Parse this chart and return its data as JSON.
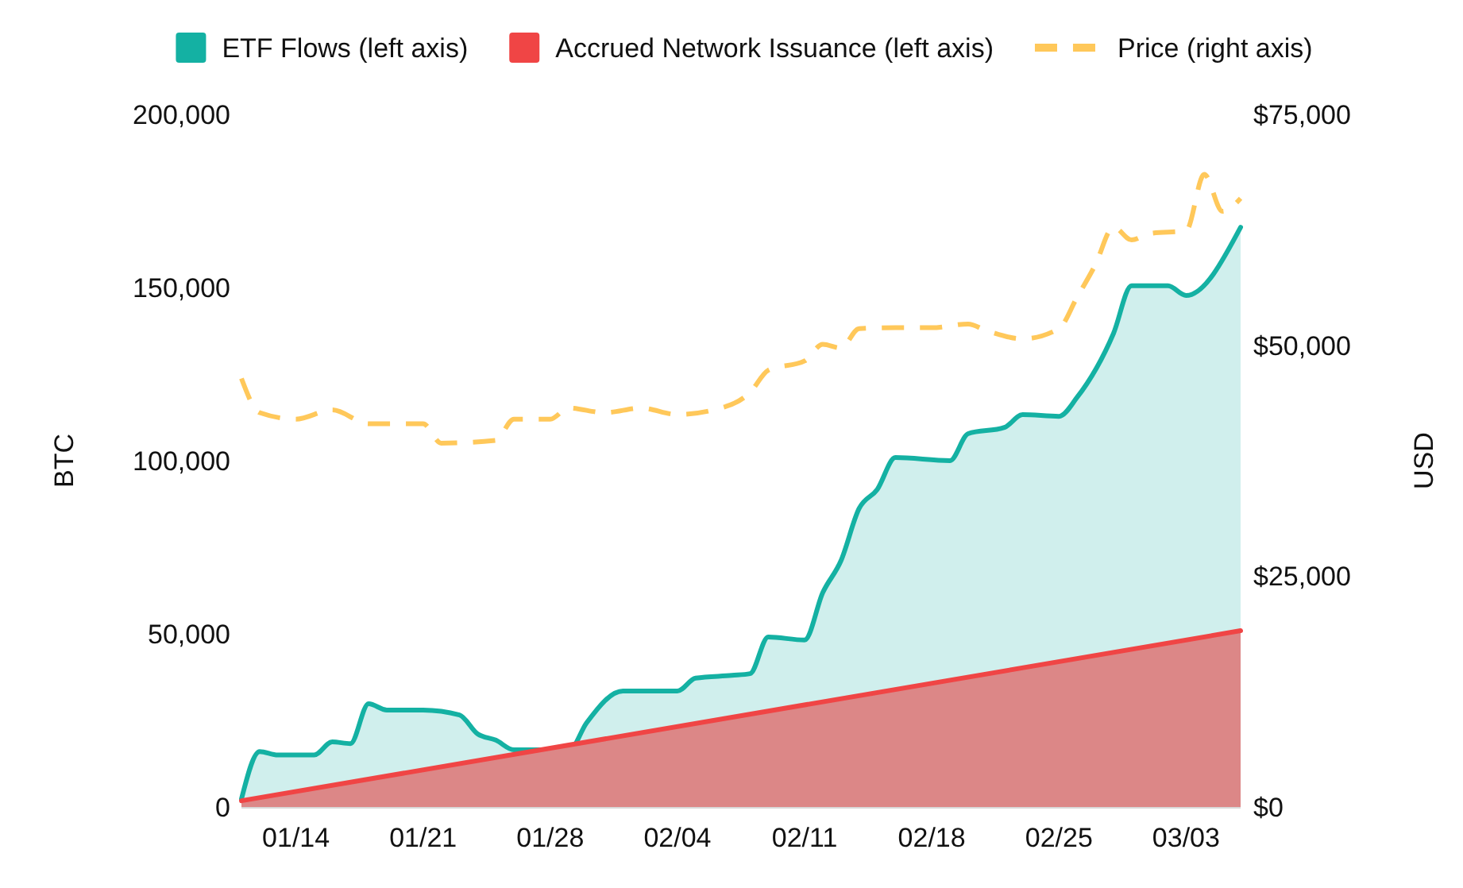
{
  "chart_data": {
    "type": "area",
    "xticks": [
      {
        "value": "--01-14",
        "label": "01/14"
      },
      {
        "value": "--01-21",
        "label": "01/21"
      },
      {
        "value": "--01-28",
        "label": "01/28"
      },
      {
        "value": "--02-04",
        "label": "02/04"
      },
      {
        "value": "--02-11",
        "label": "02/11"
      },
      {
        "value": "--02-18",
        "label": "02/18"
      },
      {
        "value": "--02-25",
        "label": "02/25"
      },
      {
        "value": "--03-03",
        "label": "03/03"
      }
    ],
    "xlim": [
      "--01-11",
      "--03-06"
    ],
    "ylim": [
      0,
      200000
    ],
    "yticks": [
      0,
      {
        "value": 50000,
        "label": "50,000"
      },
      {
        "value": 100000,
        "label": "100,000"
      },
      {
        "value": 150000,
        "label": "150,000"
      },
      {
        "value": 200000,
        "label": "200,000"
      }
    ],
    "y2lim": [
      0,
      75000
    ],
    "y2ticks": [
      {
        "value": 0,
        "label": "$0"
      },
      {
        "value": 25000,
        "label": "$25,000"
      },
      {
        "value": 50000,
        "label": "$50,000"
      },
      {
        "value": 75000,
        "label": "$75,000"
      }
    ],
    "ylabel": "BTC",
    "y2label": "USD",
    "legend": "top",
    "grid": false,
    "series": [
      {
        "name": "ETF Flows (left axis)",
        "color": "#14b1a3",
        "x": [
          "--01-11",
          "--01-12",
          "--01-13",
          "--01-15",
          "--01-16",
          "--01-17",
          "--01-18",
          "--01-19",
          "--01-21",
          "--01-23",
          "--01-24",
          "--01-25",
          "--01-26",
          "--01-28",
          "--01-29",
          "--01-30",
          "--02-01",
          "--02-04",
          "--02-05",
          "--02-07",
          "--02-08",
          "--02-09",
          "--02-11",
          "--02-12",
          "--02-13",
          "--02-14",
          "--02-15",
          "--02-16",
          "--02-19",
          "--02-20",
          "--02-22",
          "--02-23",
          "--02-25",
          "--02-26",
          "--02-28",
          "--02-29",
          "--03-02",
          "--03-03",
          "--03-06"
        ],
        "values": [
          2300,
          16000,
          15000,
          15000,
          18800,
          18300,
          29800,
          28000,
          28000,
          26600,
          21100,
          19300,
          16500,
          16500,
          16000,
          24300,
          33500,
          33500,
          37200,
          38000,
          38500,
          49100,
          48200,
          61900,
          71100,
          86200,
          91700,
          100900,
          100000,
          107800,
          109600,
          113300,
          112800,
          118300,
          136700,
          150500,
          150500,
          147700,
          167400
        ]
      },
      {
        "name": "Accrued Network Issuance (left axis)",
        "color": "#f04545",
        "x": [
          "--01-11",
          "--03-06"
        ],
        "values": [
          1800,
          50900
        ]
      },
      {
        "name": "Price (right axis)",
        "type": "line",
        "axis": "y2",
        "line_style": "dashed",
        "color": "#ffc85a",
        "x": [
          "--01-11",
          "--01-12",
          "--01-14",
          "--01-16",
          "--01-18",
          "--01-21",
          "--01-22",
          "--01-25",
          "--01-26",
          "--01-28",
          "--01-29",
          "--01-31",
          "--02-02",
          "--02-04",
          "--02-06",
          "--02-08",
          "--02-09",
          "--02-11",
          "--02-12",
          "--02-13",
          "--02-14",
          "--02-16",
          "--02-18",
          "--02-20",
          "--02-21",
          "--02-23",
          "--02-25",
          "--02-26",
          "--02-27",
          "--02-28",
          "--02-29",
          "--03-01",
          "--03-03",
          "--03-04",
          "--03-05",
          "--03-06"
        ],
        "values": [
          46400,
          42700,
          42000,
          43000,
          41500,
          41500,
          39400,
          39700,
          42000,
          42000,
          43200,
          42700,
          43200,
          42500,
          43000,
          44900,
          47300,
          48300,
          50100,
          49700,
          51800,
          51900,
          51900,
          52300,
          51600,
          50700,
          51800,
          55200,
          58700,
          62800,
          61400,
          62100,
          62400,
          68500,
          64500,
          65900
        ]
      }
    ]
  }
}
